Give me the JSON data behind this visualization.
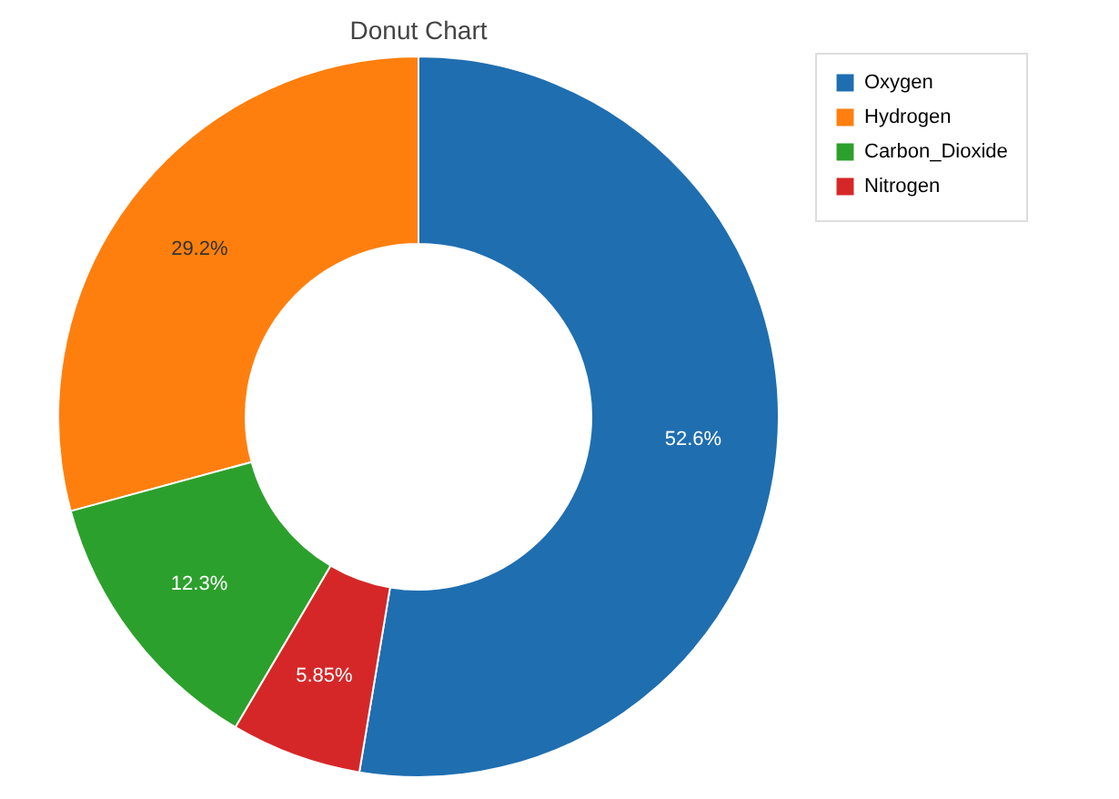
{
  "chart_data": {
    "type": "donut",
    "title": "Donut Chart",
    "categories": [
      "Oxygen",
      "Hydrogen",
      "Carbon_Dioxide",
      "Nitrogen"
    ],
    "values": [
      52.6,
      29.2,
      12.3,
      5.85
    ],
    "colors": [
      "#1f6eb0",
      "#ff7f0e",
      "#2ca02c",
      "#d62728"
    ],
    "value_labels": [
      "52.6%",
      "29.2%",
      "12.3%",
      "5.85%"
    ],
    "legend": "top right"
  }
}
